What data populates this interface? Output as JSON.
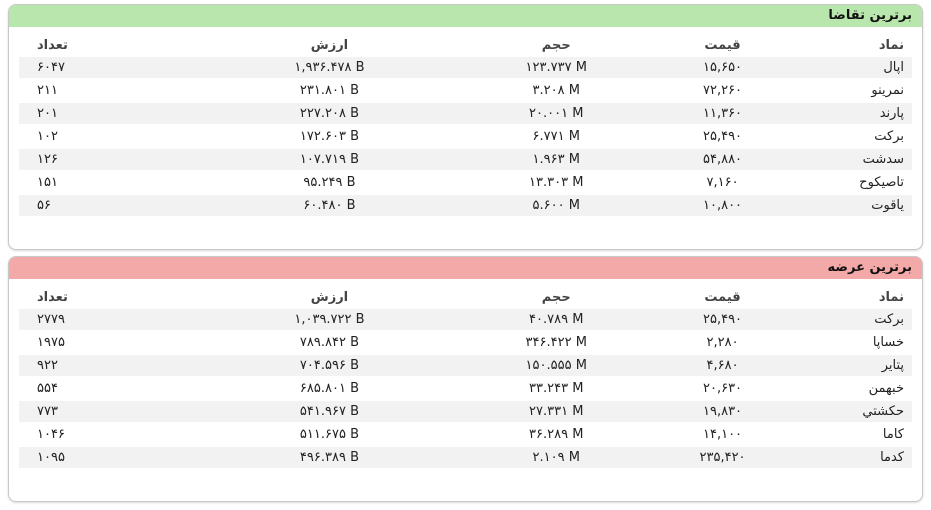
{
  "demand": {
    "title": "برترین تقاضا",
    "headers": {
      "symbol": "نماد",
      "price": "قیمت",
      "volume": "حجم",
      "value": "ارزش",
      "count": "تعداد"
    },
    "rows": [
      {
        "symbol": "اپال",
        "price": "۱۵,۶۵۰",
        "volume": "۱۲۳.۷۳۷ M",
        "value": "۱,۹۳۶.۴۷۸ B",
        "count": "۶۰۴۷"
      },
      {
        "symbol": "نمرینو",
        "price": "۷۲,۲۶۰",
        "volume": "۳.۲۰۸ M",
        "value": "۲۳۱.۸۰۱ B",
        "count": "۲۱۱"
      },
      {
        "symbol": "پارند",
        "price": "۱۱,۳۶۰",
        "volume": "۲۰.۰۰۱ M",
        "value": "۲۲۷.۲۰۸ B",
        "count": "۲۰۱"
      },
      {
        "symbol": "برکت",
        "price": "۲۵,۴۹۰",
        "volume": "۶.۷۷۱ M",
        "value": "۱۷۲.۶۰۳ B",
        "count": "۱۰۲"
      },
      {
        "symbol": "سدشت",
        "price": "۵۴,۸۸۰",
        "volume": "۱.۹۶۳ M",
        "value": "۱۰۷.۷۱۹ B",
        "count": "۱۲۶"
      },
      {
        "symbol": "تاصیکوح",
        "price": "۷,۱۶۰",
        "volume": "۱۳.۳۰۳ M",
        "value": "۹۵.۲۴۹ B",
        "count": "۱۵۱"
      },
      {
        "symbol": "یاقوت",
        "price": "۱۰,۸۰۰",
        "volume": "۵.۶۰۰ M",
        "value": "۶۰.۴۸۰ B",
        "count": "۵۶"
      }
    ]
  },
  "supply": {
    "title": "برترین عرضه",
    "headers": {
      "symbol": "نماد",
      "price": "قیمت",
      "volume": "حجم",
      "value": "ارزش",
      "count": "تعداد"
    },
    "rows": [
      {
        "symbol": "برکت",
        "price": "۲۵,۴۹۰",
        "volume": "۴۰.۷۸۹ M",
        "value": "۱,۰۳۹.۷۲۲ B",
        "count": "۲۷۷۹"
      },
      {
        "symbol": "خساپا",
        "price": "۲,۲۸۰",
        "volume": "۳۴۶.۴۲۲ M",
        "value": "۷۸۹.۸۴۲ B",
        "count": "۱۹۷۵"
      },
      {
        "symbol": "پتایر",
        "price": "۴,۶۸۰",
        "volume": "۱۵۰.۵۵۵ M",
        "value": "۷۰۴.۵۹۶ B",
        "count": "۹۲۲"
      },
      {
        "symbol": "خبهمن",
        "price": "۲۰,۶۳۰",
        "volume": "۳۳.۲۴۳ M",
        "value": "۶۸۵.۸۰۱ B",
        "count": "۵۵۴"
      },
      {
        "symbol": "حکشتي",
        "price": "۱۹,۸۳۰",
        "volume": "۲۷.۳۳۱ M",
        "value": "۵۴۱.۹۶۷ B",
        "count": "۷۷۳"
      },
      {
        "symbol": "کاما",
        "price": "۱۴,۱۰۰",
        "volume": "۳۶.۲۸۹ M",
        "value": "۵۱۱.۶۷۵ B",
        "count": "۱۰۴۶"
      },
      {
        "symbol": "کدما",
        "price": "۲۳۵,۴۲۰",
        "volume": "۲.۱۰۹ M",
        "value": "۴۹۶.۳۸۹ B",
        "count": "۱۰۹۵"
      }
    ]
  },
  "colors": {
    "demand_header": "#b9e6ad",
    "supply_header": "#f4a9a9",
    "row_stripe": "#f2f2f2"
  }
}
